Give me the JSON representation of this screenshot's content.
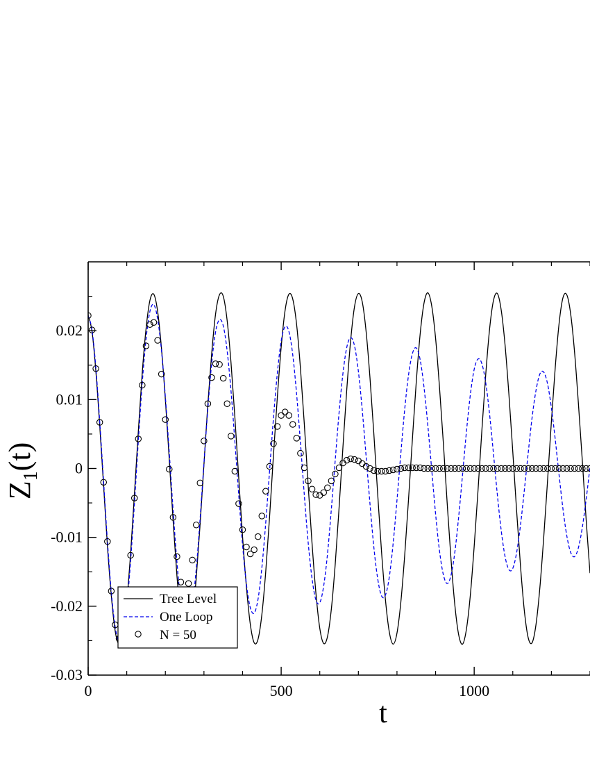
{
  "chart_data": {
    "type": "line",
    "xlabel": "t",
    "ylabel": {
      "main": "Z",
      "sub": "1",
      "suffix": "(t)"
    },
    "xlim": [
      0,
      1300
    ],
    "ylim": [
      -0.03,
      0.03
    ],
    "x_ticks": [
      {
        "value": 0,
        "label": "0"
      },
      {
        "value": 500,
        "label": "500"
      },
      {
        "value": 1000,
        "label": "1000"
      }
    ],
    "y_ticks": [
      {
        "value": -0.03,
        "label": "-0.03"
      },
      {
        "value": -0.02,
        "label": "-0.02"
      },
      {
        "value": -0.01,
        "label": "-0.01"
      },
      {
        "value": 0,
        "label": "0"
      },
      {
        "value": 0.01,
        "label": "0.01"
      },
      {
        "value": 0.02,
        "label": "0.02"
      }
    ],
    "grid": false,
    "legend_position": "bottom-left",
    "series": [
      {
        "name": "Tree Level",
        "style": "solid",
        "color": "#000000",
        "x": [
          0,
          10,
          20,
          30,
          40,
          50,
          60,
          70,
          80,
          90,
          100,
          110,
          120,
          130,
          140,
          150,
          160,
          170,
          180,
          190,
          200,
          210,
          220,
          230,
          240,
          250,
          260,
          270,
          280,
          290,
          300,
          310,
          320,
          330,
          340,
          350,
          360,
          370,
          380,
          390,
          400,
          410,
          420,
          430,
          440,
          450,
          460,
          470,
          480,
          490,
          500,
          510,
          520,
          530,
          540,
          550,
          560,
          570,
          580,
          590,
          600,
          610,
          620,
          630,
          640,
          650,
          660,
          670,
          680,
          690,
          700,
          710,
          720,
          730,
          740,
          750,
          760,
          770,
          780,
          790,
          800,
          810,
          820,
          830,
          840,
          850,
          860,
          870,
          880,
          890,
          900,
          910,
          920,
          930,
          940,
          950,
          960,
          970,
          980,
          990,
          1000,
          1010,
          1020,
          1030,
          1040,
          1050,
          1060,
          1070,
          1080,
          1090,
          1100,
          1110,
          1120,
          1130,
          1140,
          1150,
          1160,
          1170,
          1180,
          1190,
          1200,
          1210,
          1220,
          1230,
          1240,
          1250,
          1260,
          1270,
          1280,
          1290,
          1300
        ],
        "y": [
          0.0222,
          0.0199,
          0.0141,
          0.0062,
          -0.0025,
          -0.0113,
          -0.0185,
          -0.0236,
          -0.0255,
          -0.024,
          -0.0193,
          -0.0123,
          -0.0036,
          0.0054,
          0.0138,
          0.0203,
          0.0244,
          0.0253,
          0.0228,
          0.0174,
          0.01,
          0.0014,
          -0.0075,
          -0.0156,
          -0.0216,
          -0.0248,
          -0.0248,
          -0.0218,
          -0.0159,
          -0.0081,
          0.0006,
          0.0093,
          0.0167,
          0.0224,
          0.0252,
          0.025,
          0.0215,
          0.0154,
          0.0075,
          -0.0013,
          -0.0099,
          -0.0172,
          -0.0226,
          -0.0253,
          -0.0248,
          -0.0212,
          -0.015,
          -0.007,
          0.0019,
          0.0103,
          0.0176,
          0.0229,
          0.0253,
          0.0246,
          0.0209,
          0.0145,
          0.0064,
          -0.0025,
          -0.0109,
          -0.0181,
          -0.0232,
          -0.0254,
          -0.0244,
          -0.0204,
          -0.0139,
          -0.0057,
          0.0031,
          0.0115,
          0.0186,
          0.0235,
          0.0254,
          0.0242,
          0.0199,
          0.0132,
          0.0051,
          -0.0037,
          -0.0121,
          -0.019,
          -0.0237,
          -0.0255,
          -0.0239,
          -0.0194,
          -0.0126,
          -0.0044,
          0.0043,
          0.0126,
          0.0195,
          0.024,
          0.0255,
          0.0236,
          0.0189,
          0.0119,
          0.0038,
          -0.005,
          -0.0132,
          -0.0199,
          -0.0242,
          -0.0255,
          -0.0233,
          -0.0184,
          -0.0113,
          -0.0031,
          0.0056,
          0.0137,
          0.0203,
          0.0244,
          0.0254,
          0.023,
          0.0179,
          0.0107,
          0.0024,
          -0.0062,
          -0.0142,
          -0.0207,
          -0.0246,
          -0.0253,
          -0.0227,
          -0.0174,
          -0.0101,
          -0.0018,
          0.0068,
          0.0147,
          0.0211,
          0.0248,
          0.0252,
          0.0224,
          0.0169,
          0.0094,
          0.0012,
          -0.0074,
          -0.0152
        ]
      },
      {
        "name": "One Loop",
        "style": "dashed",
        "color": "#0000ee",
        "x": [
          0,
          10,
          20,
          30,
          40,
          50,
          60,
          70,
          80,
          90,
          100,
          110,
          120,
          130,
          140,
          150,
          160,
          170,
          180,
          190,
          200,
          210,
          220,
          230,
          240,
          250,
          260,
          270,
          280,
          290,
          300,
          310,
          320,
          330,
          340,
          350,
          360,
          370,
          380,
          390,
          400,
          410,
          420,
          430,
          440,
          450,
          460,
          470,
          480,
          490,
          500,
          510,
          520,
          530,
          540,
          550,
          560,
          570,
          580,
          590,
          600,
          610,
          620,
          630,
          640,
          650,
          660,
          670,
          680,
          690,
          700,
          710,
          720,
          730,
          740,
          750,
          760,
          770,
          780,
          790,
          800,
          810,
          820,
          830,
          840,
          850,
          860,
          870,
          880,
          890,
          900,
          910,
          920,
          930,
          940,
          950,
          960,
          970,
          980,
          990,
          1000,
          1010,
          1020,
          1030,
          1040,
          1050,
          1060,
          1070,
          1080,
          1090,
          1100,
          1110,
          1120,
          1130,
          1140,
          1150,
          1160,
          1170,
          1180,
          1190,
          1200,
          1210,
          1220,
          1230,
          1240,
          1250,
          1260,
          1270,
          1280,
          1290,
          1300
        ],
        "y": [
          0.0222,
          0.0201,
          0.0146,
          0.0068,
          -0.0019,
          -0.0106,
          -0.018,
          -0.023,
          -0.0252,
          -0.0242,
          -0.0201,
          -0.0134,
          -0.005,
          0.004,
          0.0123,
          0.0188,
          0.0228,
          0.0238,
          0.0217,
          0.0171,
          0.0104,
          0.0024,
          -0.006,
          -0.0136,
          -0.0193,
          -0.0224,
          -0.0226,
          -0.0199,
          -0.0146,
          -0.0073,
          0.0008,
          0.0086,
          0.0153,
          0.0198,
          0.0216,
          0.0207,
          0.0171,
          0.0113,
          0.004,
          -0.0038,
          -0.0111,
          -0.0168,
          -0.0202,
          -0.021,
          -0.019,
          -0.0144,
          -0.0079,
          -0.0003,
          0.0073,
          0.0138,
          0.0185,
          0.0206,
          0.0199,
          0.0165,
          0.0108,
          0.0037,
          -0.0039,
          -0.0108,
          -0.016,
          -0.0191,
          -0.0195,
          -0.0171,
          -0.0124,
          -0.0059,
          0.0012,
          0.0081,
          0.0138,
          0.0176,
          0.019,
          0.0178,
          0.0141,
          0.0085,
          0.0018,
          -0.0051,
          -0.0114,
          -0.016,
          -0.0185,
          -0.0184,
          -0.0158,
          -0.0109,
          -0.0046,
          0.0022,
          0.0086,
          0.0136,
          0.0167,
          0.0175,
          0.0158,
          0.0118,
          0.0062,
          -0.0002,
          -0.0066,
          -0.0119,
          -0.0154,
          -0.0167,
          -0.0155,
          -0.0121,
          -0.0069,
          -0.0008,
          0.0054,
          0.0107,
          0.0144,
          0.0159,
          0.0152,
          0.0124,
          0.0078,
          0.0021,
          -0.0038,
          -0.009,
          -0.0128,
          -0.0147,
          -0.0145,
          -0.0122,
          -0.0082,
          -0.0031,
          0.0023,
          0.0074,
          0.0113,
          0.0137,
          0.014,
          0.0123,
          0.0088,
          0.0042,
          -0.001,
          -0.0059,
          -0.0098,
          -0.0122,
          -0.0128,
          -0.0115,
          -0.0086,
          -0.0045,
          0.0002
        ]
      },
      {
        "name": "N = 50",
        "style": "markers",
        "color": "#000000",
        "x": [
          0,
          10,
          20,
          30,
          40,
          50,
          60,
          70,
          80,
          90,
          100,
          110,
          120,
          130,
          140,
          150,
          160,
          170,
          180,
          190,
          200,
          210,
          220,
          230,
          240,
          250,
          260,
          270,
          280,
          290,
          300,
          310,
          320,
          330,
          340,
          350,
          360,
          370,
          380,
          390,
          400,
          410,
          420,
          430,
          440,
          450,
          460,
          470,
          480,
          490,
          500,
          510,
          520,
          530,
          540,
          550,
          560,
          570,
          580,
          590,
          600,
          610,
          620,
          630,
          640,
          650,
          660,
          670,
          680,
          690,
          700,
          710,
          720,
          730,
          740,
          750,
          760,
          770,
          780,
          790,
          800,
          810,
          820,
          830,
          840,
          850,
          860,
          870,
          880,
          890,
          900,
          910,
          920,
          930,
          940,
          950,
          960,
          970,
          980,
          990,
          1000,
          1010,
          1020,
          1030,
          1040,
          1050,
          1060,
          1070,
          1080,
          1090,
          1100,
          1110,
          1120,
          1130,
          1140,
          1150,
          1160,
          1170,
          1180,
          1190,
          1200,
          1210,
          1220,
          1230,
          1240,
          1250,
          1260,
          1270,
          1280,
          1290,
          1300
        ],
        "y": [
          0.0222,
          0.0201,
          0.0145,
          0.0067,
          -0.002,
          -0.0106,
          -0.0178,
          -0.0227,
          -0.0247,
          -0.0235,
          -0.0192,
          -0.0126,
          -0.0043,
          0.0043,
          0.0121,
          0.0178,
          0.0209,
          0.0212,
          0.0186,
          0.0137,
          0.0071,
          -0.0001,
          -0.0071,
          -0.0128,
          -0.0165,
          -0.0178,
          -0.0167,
          -0.0133,
          -0.0082,
          -0.0021,
          0.004,
          0.0094,
          0.0132,
          0.0152,
          0.0151,
          0.0131,
          0.0094,
          0.0047,
          -0.0004,
          -0.0051,
          -0.0089,
          -0.0114,
          -0.0124,
          -0.0118,
          -0.0099,
          -0.0069,
          -0.0033,
          0.0003,
          0.0036,
          0.0061,
          0.0077,
          0.0082,
          0.0077,
          0.0064,
          0.0044,
          0.0022,
          0.0001,
          -0.0018,
          -0.003,
          -0.0038,
          -0.0039,
          -0.0035,
          -0.0028,
          -0.0018,
          -0.0008,
          0.0001,
          0.0008,
          0.0012,
          0.0014,
          0.0013,
          0.0011,
          0.0007,
          0.0003,
          0.0,
          -0.0003,
          -0.0004,
          -0.0004,
          -0.0004,
          -0.0003,
          -0.0002,
          -0.0001,
          0.0,
          0.0001,
          0.0001,
          0.0001,
          0.0001,
          0.0001,
          0.0,
          0.0,
          0.0,
          -0.0,
          -0.0,
          -0.0,
          -0.0,
          -0.0,
          -0.0,
          0.0,
          0.0,
          0.0,
          0.0,
          0.0,
          0.0,
          0.0,
          0.0,
          -0.0,
          -0.0,
          -0.0,
          -0.0,
          -0.0,
          -0.0,
          0.0,
          0.0,
          0.0,
          0.0,
          0.0,
          0.0,
          -0.0,
          -0.0,
          -0.0,
          -0.0,
          -0.0,
          0.0,
          0.0,
          0.0,
          0.0,
          0.0,
          -0.0,
          -0.0,
          -0.0,
          -0.0,
          -0.0
        ]
      }
    ]
  }
}
